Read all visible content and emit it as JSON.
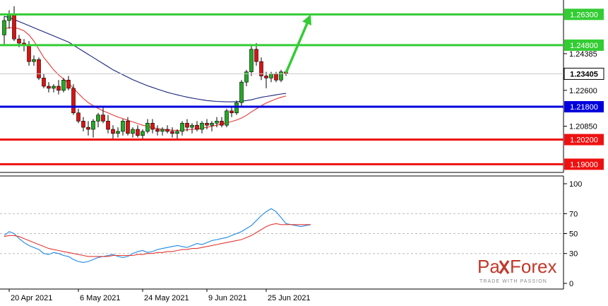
{
  "chart_data": [
    {
      "type": "candlestick",
      "title": "",
      "price_range": [
        1.186,
        1.27
      ],
      "x_labels": [
        "20 Apr 2021",
        "6 May 2021",
        "24 May 2021",
        "9 Jun 2021",
        "25 Jun 2021"
      ],
      "y_ticks": [
        "1.24385",
        "1.22600",
        "1.20850"
      ],
      "current_price": "1.23405",
      "levels": [
        {
          "label": "1.26300",
          "value": 1.263,
          "color": "#33cc33"
        },
        {
          "label": "1.24800",
          "value": 1.248,
          "color": "#33cc33"
        },
        {
          "label": "1.21800",
          "value": 1.218,
          "color": "#0000dd"
        },
        {
          "label": "1.20200",
          "value": 1.202,
          "color": "#ee1111"
        },
        {
          "label": "1.19000",
          "value": 1.19,
          "color": "#ee1111"
        }
      ],
      "candles": [
        [
          1.253,
          1.262,
          1.248,
          1.26
        ],
        [
          1.26,
          1.265,
          1.256,
          1.263
        ],
        [
          1.263,
          1.267,
          1.25,
          1.251
        ],
        [
          1.251,
          1.253,
          1.247,
          1.249
        ],
        [
          1.249,
          1.251,
          1.245,
          1.248
        ],
        [
          1.248,
          1.25,
          1.238,
          1.24
        ],
        [
          1.24,
          1.243,
          1.238,
          1.241
        ],
        [
          1.241,
          1.242,
          1.231,
          1.232
        ],
        [
          1.232,
          1.234,
          1.227,
          1.228
        ],
        [
          1.228,
          1.23,
          1.225,
          1.227
        ],
        [
          1.227,
          1.229,
          1.225,
          1.228
        ],
        [
          1.228,
          1.231,
          1.224,
          1.226
        ],
        [
          1.226,
          1.232,
          1.225,
          1.231
        ],
        [
          1.231,
          1.233,
          1.226,
          1.227
        ],
        [
          1.227,
          1.229,
          1.214,
          1.215
        ],
        [
          1.215,
          1.217,
          1.21,
          1.211
        ],
        [
          1.211,
          1.213,
          1.206,
          1.208
        ],
        [
          1.208,
          1.211,
          1.204,
          1.207
        ],
        [
          1.207,
          1.212,
          1.203,
          1.211
        ],
        [
          1.211,
          1.215,
          1.208,
          1.214
        ],
        [
          1.214,
          1.218,
          1.21,
          1.211
        ],
        [
          1.211,
          1.214,
          1.205,
          1.207
        ],
        [
          1.207,
          1.209,
          1.202,
          1.205
        ],
        [
          1.205,
          1.208,
          1.203,
          1.206
        ],
        [
          1.206,
          1.212,
          1.204,
          1.211
        ],
        [
          1.211,
          1.213,
          1.204,
          1.205
        ],
        [
          1.205,
          1.208,
          1.203,
          1.207
        ],
        [
          1.207,
          1.209,
          1.203,
          1.204
        ],
        [
          1.204,
          1.207,
          1.202,
          1.206
        ],
        [
          1.206,
          1.212,
          1.205,
          1.21
        ],
        [
          1.21,
          1.212,
          1.205,
          1.207
        ],
        [
          1.207,
          1.209,
          1.204,
          1.206
        ],
        [
          1.206,
          1.208,
          1.204,
          1.207
        ],
        [
          1.207,
          1.209,
          1.205,
          1.206
        ],
        [
          1.206,
          1.208,
          1.203,
          1.205
        ],
        [
          1.205,
          1.207,
          1.202,
          1.206
        ],
        [
          1.206,
          1.211,
          1.204,
          1.21
        ],
        [
          1.21,
          1.212,
          1.206,
          1.208
        ],
        [
          1.208,
          1.21,
          1.205,
          1.209
        ],
        [
          1.209,
          1.211,
          1.206,
          1.207
        ],
        [
          1.207,
          1.211,
          1.205,
          1.21
        ],
        [
          1.21,
          1.212,
          1.207,
          1.209
        ],
        [
          1.209,
          1.211,
          1.206,
          1.21
        ],
        [
          1.21,
          1.213,
          1.208,
          1.211
        ],
        [
          1.211,
          1.213,
          1.208,
          1.209
        ],
        [
          1.209,
          1.217,
          1.208,
          1.216
        ],
        [
          1.216,
          1.218,
          1.213,
          1.215
        ],
        [
          1.215,
          1.221,
          1.214,
          1.22
        ],
        [
          1.22,
          1.231,
          1.218,
          1.23
        ],
        [
          1.23,
          1.236,
          1.228,
          1.235
        ],
        [
          1.235,
          1.248,
          1.233,
          1.246
        ],
        [
          1.246,
          1.249,
          1.238,
          1.24
        ],
        [
          1.24,
          1.242,
          1.231,
          1.233
        ],
        [
          1.233,
          1.235,
          1.227,
          1.232
        ],
        [
          1.232,
          1.235,
          1.23,
          1.234
        ],
        [
          1.234,
          1.235,
          1.23,
          1.231
        ],
        [
          1.231,
          1.236,
          1.23,
          1.235
        ],
        [
          1.235,
          1.236,
          1.233,
          1.234
        ]
      ],
      "series": [
        {
          "name": "",
          "color": "#1a237e",
          "values": [
            1.262,
            1.2615,
            1.2605,
            1.2595,
            1.2585,
            1.2575,
            1.2565,
            1.2555,
            1.2545,
            1.2535,
            1.2525,
            1.2515,
            1.2505,
            1.2495,
            1.248,
            1.2465,
            1.245,
            1.2435,
            1.242,
            1.2405,
            1.239,
            1.2375,
            1.236,
            1.2348,
            1.2336,
            1.2324,
            1.2312,
            1.2302,
            1.2292,
            1.2282,
            1.2274,
            1.2266,
            1.2258,
            1.225,
            1.2244,
            1.2238,
            1.2232,
            1.2227,
            1.2222,
            1.2218,
            1.2214,
            1.221,
            1.2208,
            1.2206,
            1.2205,
            1.2204,
            1.2204,
            1.2205,
            1.2207,
            1.221,
            1.2214,
            1.222,
            1.2226,
            1.223,
            1.2234,
            1.2238,
            1.2242,
            1.2245
          ]
        },
        {
          "name": "",
          "color": "#e53935",
          "values": [
            1.256,
            1.2565,
            1.2565,
            1.256,
            1.255,
            1.253,
            1.25,
            1.246,
            1.242,
            1.239,
            1.236,
            1.2335,
            1.2315,
            1.2295,
            1.227,
            1.2245,
            1.222,
            1.22,
            1.2185,
            1.2172,
            1.216,
            1.215,
            1.214,
            1.213,
            1.2122,
            1.2114,
            1.2106,
            1.2098,
            1.209,
            1.2084,
            1.2078,
            1.2074,
            1.207,
            1.2068,
            1.2066,
            1.2065,
            1.2066,
            1.2068,
            1.207,
            1.2072,
            1.2076,
            1.208,
            1.2085,
            1.209,
            1.2096,
            1.2102,
            1.2108,
            1.2115,
            1.2125,
            1.2138,
            1.2155,
            1.217,
            1.2185,
            1.2198,
            1.2208,
            1.2218,
            1.2226,
            1.2232
          ]
        }
      ],
      "forecast_arrow": {
        "color": "#33cc33",
        "from": [
          57,
          1.2345
        ],
        "to": [
          62,
          1.263
        ]
      }
    },
    {
      "type": "line",
      "title": "",
      "ylim": [
        0,
        100
      ],
      "y_ticks": [
        "100",
        "70",
        "50",
        "30",
        "0"
      ],
      "series": [
        {
          "name": "",
          "color": "#1e88e5",
          "values": [
            48,
            52,
            50,
            45,
            41,
            38,
            36,
            34,
            30,
            29,
            31,
            30,
            28,
            27,
            24,
            22,
            21,
            22,
            24,
            26,
            27,
            28,
            29,
            27,
            26,
            27,
            30,
            32,
            33,
            31,
            32,
            34,
            35,
            36,
            37,
            38,
            37,
            36,
            38,
            40,
            39,
            41,
            43,
            44,
            45,
            46,
            48,
            50,
            52,
            55,
            58,
            63,
            68,
            72,
            75,
            72,
            66,
            60,
            59,
            58,
            57,
            58,
            59
          ]
        },
        {
          "name": "",
          "color": "#e53935",
          "values": [
            47,
            48,
            48,
            47,
            45,
            43,
            41,
            39,
            37,
            35,
            34,
            33,
            32,
            31,
            30,
            29,
            28,
            27,
            27,
            27,
            27,
            27,
            28,
            28,
            28,
            28,
            28,
            29,
            29,
            30,
            30,
            31,
            31,
            32,
            32,
            33,
            34,
            34,
            35,
            35,
            36,
            37,
            38,
            39,
            40,
            41,
            42,
            43,
            44,
            46,
            48,
            51,
            54,
            57,
            59,
            60,
            59,
            59,
            59,
            59,
            59,
            59,
            59
          ]
        }
      ]
    }
  ],
  "branding": {
    "logo_text_pax": "Pa",
    "logo_text_forex": "Forex",
    "tagline": "TRADE WITH PASSION"
  }
}
